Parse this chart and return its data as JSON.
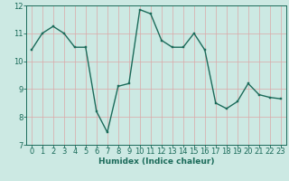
{
  "x": [
    0,
    1,
    2,
    3,
    4,
    5,
    6,
    7,
    8,
    9,
    10,
    11,
    12,
    13,
    14,
    15,
    16,
    17,
    18,
    19,
    20,
    21,
    22,
    23
  ],
  "y": [
    10.4,
    11.0,
    11.25,
    11.0,
    10.5,
    10.5,
    8.2,
    7.45,
    9.1,
    9.2,
    11.85,
    11.7,
    10.75,
    10.5,
    10.5,
    11.0,
    10.4,
    8.5,
    8.3,
    8.55,
    9.2,
    8.8,
    8.7,
    8.65
  ],
  "line_color": "#1b6b5a",
  "marker_color": "#1b6b5a",
  "background_color": "#cce9e3",
  "grid_color": "#dba8a8",
  "axis_color": "#1b6b5a",
  "xlabel": "Humidex (Indice chaleur)",
  "ylim": [
    7,
    12
  ],
  "xlim": [
    -0.5,
    23.5
  ],
  "yticks": [
    7,
    8,
    9,
    10,
    11,
    12
  ],
  "xticks": [
    0,
    1,
    2,
    3,
    4,
    5,
    6,
    7,
    8,
    9,
    10,
    11,
    12,
    13,
    14,
    15,
    16,
    17,
    18,
    19,
    20,
    21,
    22,
    23
  ],
  "xlabel_fontsize": 6.5,
  "tick_fontsize": 6.0,
  "line_width": 1.0,
  "marker_size": 2.0
}
